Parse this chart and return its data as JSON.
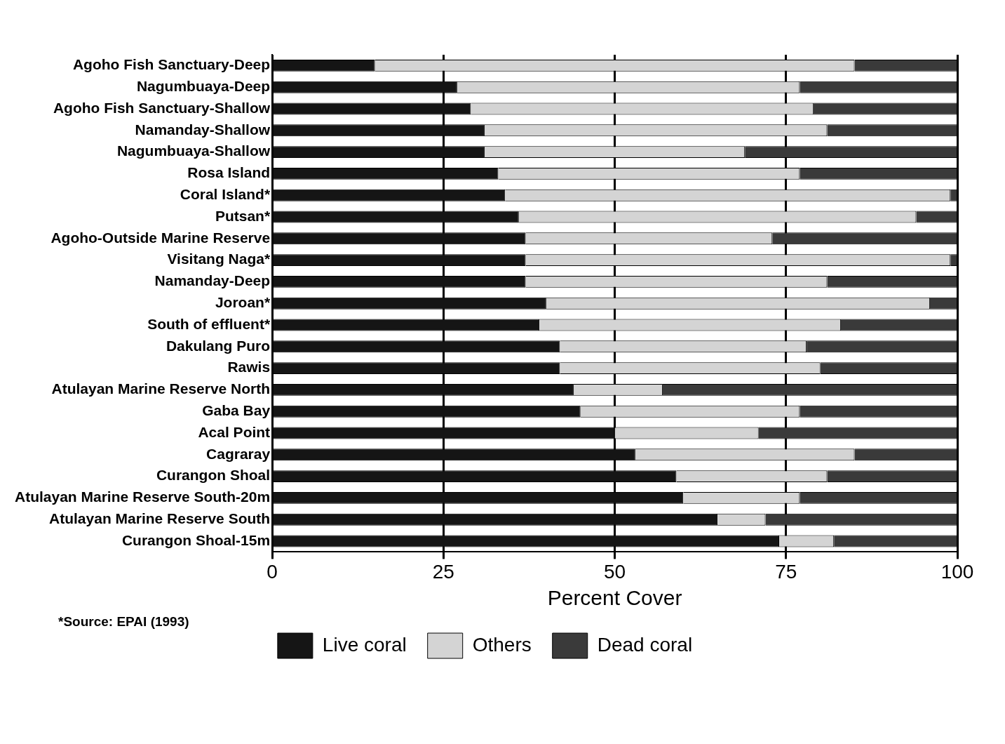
{
  "chart_data": {
    "type": "bar",
    "orientation": "horizontal",
    "stacked": true,
    "xlabel": "Percent Cover",
    "categories": [
      "Agoho Fish Sanctuary-Deep",
      "Nagumbuaya-Deep",
      "Agoho Fish Sanctuary-Shallow",
      "Namanday-Shallow",
      "Nagumbuaya-Shallow",
      "Rosa Island",
      "Coral Island*",
      "Putsan*",
      "Agoho-Outside Marine Reserve",
      "Visitang Naga*",
      "Namanday-Deep",
      "Joroan*",
      "South of effluent*",
      "Dakulang Puro",
      "Rawis",
      "Atulayan Marine Reserve North",
      "Gaba Bay",
      "Acal Point",
      "Cagraray",
      "Curangon Shoal",
      "Atulayan Marine Reserve South-20m",
      "Atulayan Marine Reserve South",
      "Curangon Shoal-15m"
    ],
    "series": [
      {
        "name": "Live coral",
        "color": "#151515",
        "values": [
          15,
          27,
          29,
          31,
          31,
          33,
          34,
          36,
          37,
          37,
          37,
          40,
          39,
          42,
          42,
          44,
          45,
          50,
          53,
          59,
          60,
          65,
          74
        ]
      },
      {
        "name": "Others",
        "color": "#d4d4d4",
        "values": [
          70,
          50,
          50,
          50,
          38,
          44,
          65,
          58,
          36,
          62,
          44,
          56,
          44,
          36,
          38,
          13,
          32,
          21,
          32,
          22,
          17,
          7,
          8
        ]
      },
      {
        "name": "Dead coral",
        "color": "#3a3a3a",
        "values": [
          15,
          23,
          21,
          19,
          31,
          23,
          1,
          6,
          27,
          1,
          19,
          4,
          17,
          22,
          20,
          43,
          23,
          29,
          15,
          19,
          23,
          28,
          18
        ]
      }
    ],
    "xlim": [
      0,
      100
    ],
    "xticks": [
      0,
      25,
      50,
      75,
      100
    ],
    "grid": "x",
    "legend": "bottom",
    "annotations": [
      "*Source: EPAI (1993)"
    ]
  }
}
